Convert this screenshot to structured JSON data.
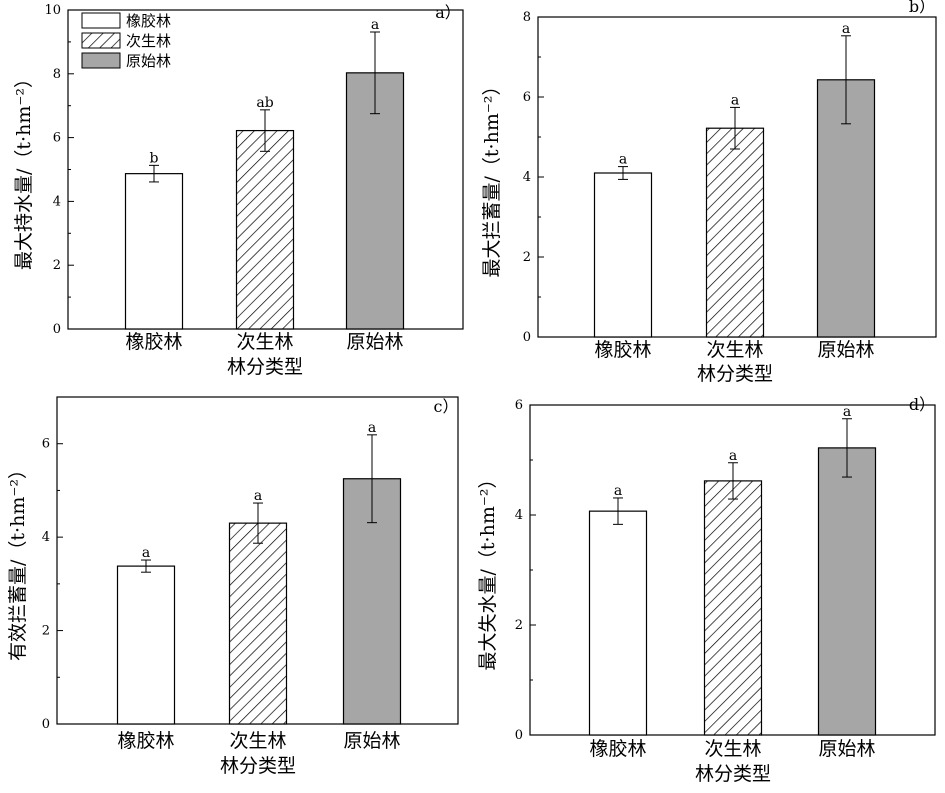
{
  "legend": [
    "橡胶林",
    "次生林",
    "原始林"
  ],
  "chart_data": [
    {
      "panel": "a）",
      "type": "bar",
      "categories": [
        "橡胶林",
        "次生林",
        "原始林"
      ],
      "values": [
        4.87,
        6.22,
        8.03
      ],
      "errors": [
        0.26,
        0.65,
        1.28
      ],
      "significance": [
        "b",
        "ab",
        "a"
      ],
      "xlabel": "林分类型",
      "ylabel": "最大持水量/（t·hm⁻²）",
      "ylim": [
        0,
        10
      ],
      "yticks": [
        "0",
        "2",
        "4",
        "6",
        "8",
        "10"
      ],
      "legend": [
        "橡胶林",
        "次生林",
        "原始林"
      ],
      "legend_position": "top-left"
    },
    {
      "panel": "b）",
      "type": "bar",
      "categories": [
        "橡胶林",
        "次生林",
        "原始林"
      ],
      "values": [
        4.1,
        5.22,
        6.43
      ],
      "errors": [
        0.16,
        0.52,
        1.1
      ],
      "significance": [
        "a",
        "a",
        "a"
      ],
      "xlabel": "林分类型",
      "ylabel": "最大拦蓄量/（t·hm⁻²）",
      "ylim": [
        0,
        8
      ],
      "yticks": [
        "0",
        "2",
        "4",
        "6",
        "8"
      ]
    },
    {
      "panel": "c）",
      "type": "bar",
      "categories": [
        "橡胶林",
        "次生林",
        "原始林"
      ],
      "values": [
        3.38,
        4.3,
        5.25
      ],
      "errors": [
        0.13,
        0.43,
        0.94
      ],
      "significance": [
        "a",
        "a",
        "a"
      ],
      "xlabel": "林分类型",
      "ylabel": "有效拦蓄量/（t·hm⁻²）",
      "ylim": [
        0,
        7
      ],
      "yticks": [
        "0",
        "2",
        "4",
        "6"
      ]
    },
    {
      "panel": "d）",
      "type": "bar",
      "categories": [
        "橡胶林",
        "次生林",
        "原始林"
      ],
      "values": [
        4.07,
        4.62,
        5.22
      ],
      "errors": [
        0.24,
        0.33,
        0.53
      ],
      "significance": [
        "a",
        "a",
        "a"
      ],
      "xlabel": "林分类型",
      "ylabel": "最大失水量/（t·hm⁻²）",
      "ylim": [
        0,
        6
      ],
      "yticks": [
        "0",
        "2",
        "4",
        "6"
      ]
    }
  ]
}
